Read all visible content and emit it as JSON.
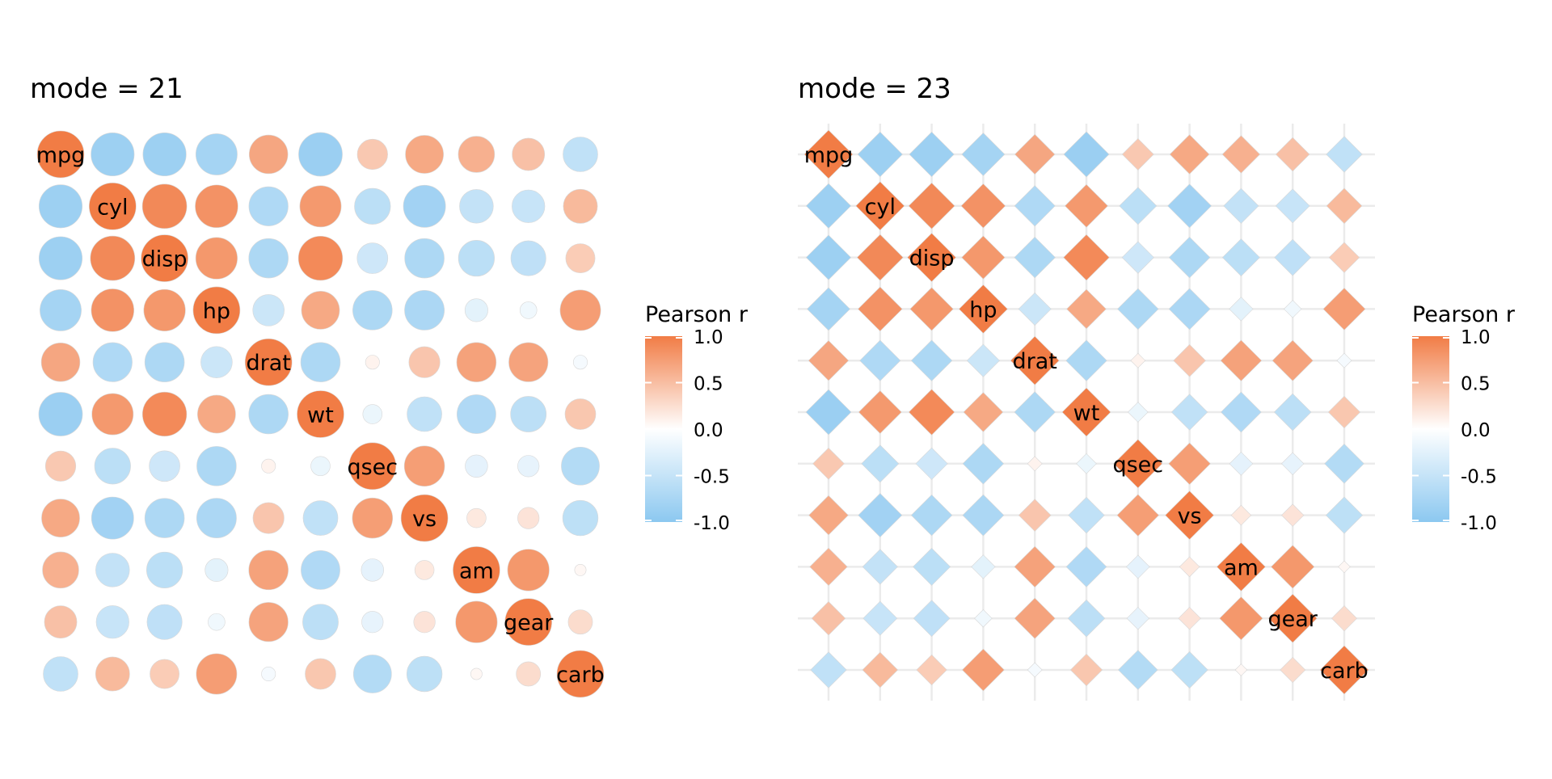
{
  "chart_data": [
    {
      "type": "heatmap",
      "title": "mode = 21",
      "marker": "circle",
      "variables": [
        "mpg",
        "cyl",
        "disp",
        "hp",
        "drat",
        "wt",
        "qsec",
        "vs",
        "am",
        "gear",
        "carb"
      ],
      "matrix": [
        [
          1,
          -0.85,
          -0.85,
          -0.78,
          0.68,
          -0.87,
          0.42,
          0.66,
          0.6,
          0.48,
          -0.55
        ],
        [
          -0.85,
          1,
          0.9,
          0.83,
          -0.7,
          0.78,
          -0.59,
          -0.81,
          -0.52,
          -0.49,
          0.53
        ],
        [
          -0.85,
          0.9,
          1,
          0.79,
          -0.71,
          0.89,
          -0.43,
          -0.71,
          -0.59,
          -0.56,
          0.39
        ],
        [
          -0.78,
          0.83,
          0.79,
          1,
          -0.45,
          0.66,
          -0.71,
          -0.72,
          -0.24,
          -0.13,
          0.75
        ],
        [
          0.68,
          -0.7,
          -0.71,
          -0.45,
          1,
          -0.71,
          0.09,
          0.44,
          0.71,
          0.7,
          -0.09
        ],
        [
          -0.87,
          0.78,
          0.89,
          0.66,
          -0.71,
          1,
          -0.17,
          -0.55,
          -0.69,
          -0.58,
          0.43
        ],
        [
          0.42,
          -0.59,
          -0.43,
          -0.71,
          0.09,
          -0.17,
          1,
          0.74,
          -0.23,
          -0.21,
          -0.66
        ],
        [
          0.66,
          -0.81,
          -0.71,
          -0.72,
          0.44,
          -0.55,
          0.74,
          1,
          0.17,
          0.21,
          -0.57
        ],
        [
          0.6,
          -0.52,
          -0.59,
          -0.24,
          0.71,
          -0.69,
          -0.23,
          0.17,
          1,
          0.79,
          0.06
        ],
        [
          0.48,
          -0.49,
          -0.56,
          -0.13,
          0.7,
          -0.58,
          -0.21,
          0.21,
          0.79,
          1,
          0.27
        ],
        [
          -0.55,
          0.53,
          0.39,
          0.75,
          -0.09,
          0.43,
          -0.66,
          -0.57,
          0.06,
          0.27,
          1
        ]
      ],
      "legend": {
        "title": "Pearson r",
        "ticks": [
          "1.0",
          "0.5",
          "0.0",
          "-0.5",
          "-1.0"
        ],
        "range": [
          -1,
          1
        ]
      }
    },
    {
      "type": "heatmap",
      "title": "mode = 23",
      "marker": "diamond",
      "variables": [
        "mpg",
        "cyl",
        "disp",
        "hp",
        "drat",
        "wt",
        "qsec",
        "vs",
        "am",
        "gear",
        "carb"
      ],
      "matrix": [
        [
          1,
          -0.85,
          -0.85,
          -0.78,
          0.68,
          -0.87,
          0.42,
          0.66,
          0.6,
          0.48,
          -0.55
        ],
        [
          -0.85,
          1,
          0.9,
          0.83,
          -0.7,
          0.78,
          -0.59,
          -0.81,
          -0.52,
          -0.49,
          0.53
        ],
        [
          -0.85,
          0.9,
          1,
          0.79,
          -0.71,
          0.89,
          -0.43,
          -0.71,
          -0.59,
          -0.56,
          0.39
        ],
        [
          -0.78,
          0.83,
          0.79,
          1,
          -0.45,
          0.66,
          -0.71,
          -0.72,
          -0.24,
          -0.13,
          0.75
        ],
        [
          0.68,
          -0.7,
          -0.71,
          -0.45,
          1,
          -0.71,
          0.09,
          0.44,
          0.71,
          0.7,
          -0.09
        ],
        [
          -0.87,
          0.78,
          0.89,
          0.66,
          -0.71,
          1,
          -0.17,
          -0.55,
          -0.69,
          -0.58,
          0.43
        ],
        [
          0.42,
          -0.59,
          -0.43,
          -0.71,
          0.09,
          -0.17,
          1,
          0.74,
          -0.23,
          -0.21,
          -0.66
        ],
        [
          0.66,
          -0.81,
          -0.71,
          -0.72,
          0.44,
          -0.55,
          0.74,
          1,
          0.17,
          0.21,
          -0.57
        ],
        [
          0.6,
          -0.52,
          -0.59,
          -0.24,
          0.71,
          -0.69,
          -0.23,
          0.17,
          1,
          0.79,
          0.06
        ],
        [
          0.48,
          -0.49,
          -0.56,
          -0.13,
          0.7,
          -0.58,
          -0.21,
          0.21,
          0.79,
          1,
          0.27
        ],
        [
          -0.55,
          0.53,
          0.39,
          0.75,
          -0.09,
          0.43,
          -0.66,
          -0.57,
          0.06,
          0.27,
          1
        ]
      ],
      "legend": {
        "title": "Pearson r",
        "ticks": [
          "1.0",
          "0.5",
          "0.0",
          "-0.5",
          "-1.0"
        ],
        "range": [
          -1,
          1
        ]
      }
    }
  ],
  "colors": {
    "positive": "#F17C45",
    "midpoint": "#FFFFFF",
    "negative": "#8CC8F0",
    "grid": "#EBEBEB"
  }
}
